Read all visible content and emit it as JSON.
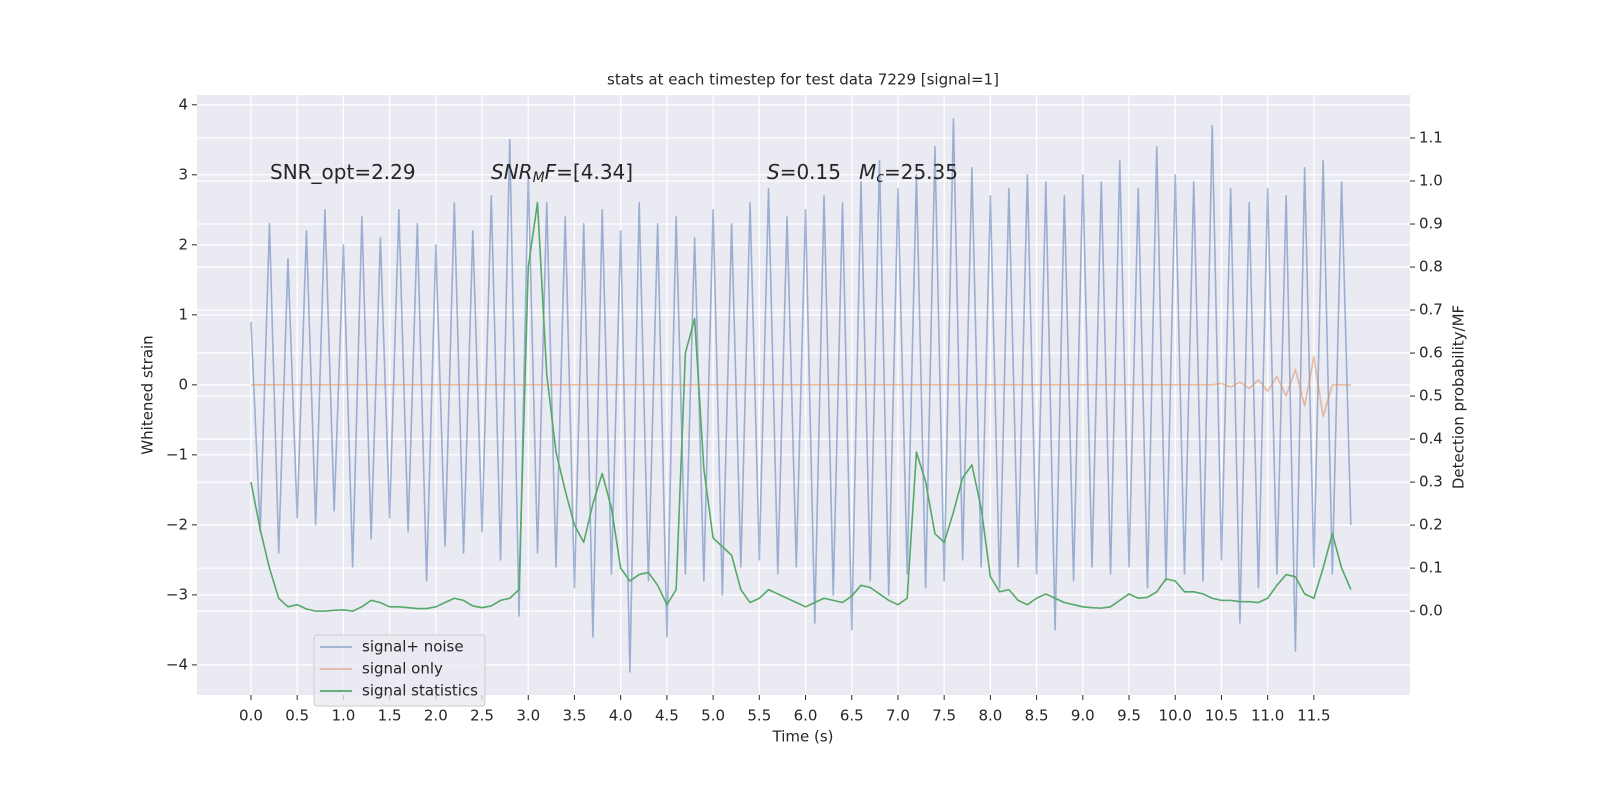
{
  "chart_data": {
    "type": "line",
    "title": "stats at each timestep for test data 7229 [signal=1]",
    "xlabel": "Time (s)",
    "ylabel": "Whitened strain",
    "y2label": "Detection probability/MF",
    "background": "#eaeaf2",
    "grid": true,
    "legend": "lower left",
    "xlim": [
      -0.584,
      12.54
    ],
    "ylim": [
      -4.43,
      4.14
    ],
    "y2lim": [
      -0.195,
      1.2
    ],
    "xticks": [
      {
        "value": 0,
        "label": "0.0"
      },
      0.5,
      {
        "value": 1,
        "label": "1.0"
      },
      1.5,
      {
        "value": 2,
        "label": "2.0"
      },
      2.5,
      {
        "value": 3,
        "label": "3.0"
      },
      3.5,
      {
        "value": 4,
        "label": "4.0"
      },
      4.5,
      {
        "value": 5,
        "label": "5.0"
      },
      5.5,
      {
        "value": 6,
        "label": "6.0"
      },
      6.5,
      {
        "value": 7,
        "label": "7.0"
      },
      7.5,
      {
        "value": 8,
        "label": "8.0"
      },
      8.5,
      {
        "value": 9,
        "label": "9.0"
      },
      9.5,
      {
        "value": 10,
        "label": "10.0"
      },
      10.5,
      {
        "value": 11,
        "label": "11.0"
      },
      11.5
    ],
    "yticks": [
      {
        "value": -4,
        "label": "−4"
      },
      {
        "value": -3,
        "label": "−3"
      },
      {
        "value": -2,
        "label": "−2"
      },
      {
        "value": -1,
        "label": "−1"
      },
      0,
      1,
      2,
      3,
      4
    ],
    "y2ticks": [
      {
        "value": 0,
        "label": "0.0"
      },
      0.1,
      0.2,
      0.3,
      0.4,
      0.5,
      0.6,
      0.7,
      0.8,
      0.9,
      {
        "value": 1,
        "label": "1.0"
      },
      1.1
    ],
    "x": [
      0,
      0.1,
      0.2,
      0.3,
      0.4,
      0.5,
      0.6,
      0.7,
      0.8,
      0.9,
      1,
      1.1,
      1.2,
      1.3,
      1.4,
      1.5,
      1.6,
      1.7,
      1.8,
      1.9,
      2,
      2.1,
      2.2,
      2.3,
      2.4,
      2.5,
      2.6,
      2.7,
      2.8,
      2.9,
      3,
      3.1,
      3.2,
      3.3,
      3.4,
      3.5,
      3.6,
      3.7,
      3.8,
      3.9,
      4,
      4.1,
      4.2,
      4.3,
      4.4,
      4.5,
      4.6,
      4.7,
      4.8,
      4.9,
      5,
      5.1,
      5.2,
      5.3,
      5.4,
      5.5,
      5.6,
      5.7,
      5.8,
      5.9,
      6,
      6.1,
      6.2,
      6.3,
      6.4,
      6.5,
      6.6,
      6.7,
      6.8,
      6.9,
      7,
      7.1,
      7.2,
      7.3,
      7.4,
      7.5,
      7.6,
      7.7,
      7.8,
      7.9,
      8,
      8.1,
      8.2,
      8.3,
      8.4,
      8.5,
      8.6,
      8.7,
      8.8,
      8.9,
      9,
      9.1,
      9.2,
      9.3,
      9.4,
      9.5,
      9.6,
      9.7,
      9.8,
      9.9,
      10,
      10.1,
      10.2,
      10.3,
      10.4,
      10.5,
      10.6,
      10.7,
      10.8,
      10.9,
      11,
      11.1,
      11.2,
      11.3,
      11.4,
      11.5,
      11.6,
      11.7,
      11.8,
      11.9
    ],
    "series": [
      {
        "name": "signal+ noise",
        "color": "#4c72b0",
        "opacity": 0.5,
        "values": [
          0.9,
          -2.1,
          2.3,
          -2.4,
          1.8,
          -1.9,
          2.2,
          -2.0,
          2.5,
          -1.8,
          2.0,
          -2.6,
          2.4,
          -2.2,
          2.1,
          -1.9,
          2.5,
          -2.1,
          2.3,
          -2.8,
          2.0,
          -2.3,
          2.6,
          -2.4,
          2.2,
          -2.1,
          2.7,
          -2.5,
          3.5,
          -3.3,
          3.0,
          -2.4,
          2.6,
          -2.6,
          2.4,
          -2.9,
          2.3,
          -3.6,
          2.5,
          -2.7,
          2.2,
          -4.1,
          2.6,
          -2.8,
          2.3,
          -3.6,
          2.4,
          -2.7,
          2.1,
          -2.8,
          2.5,
          -3.0,
          2.3,
          -2.6,
          2.6,
          -2.5,
          2.8,
          -2.7,
          2.4,
          -2.6,
          2.5,
          -3.4,
          2.7,
          -3.0,
          2.6,
          -3.5,
          2.9,
          -2.8,
          3.2,
          -3.0,
          2.8,
          -2.7,
          3.0,
          -2.9,
          3.4,
          -2.8,
          3.8,
          -2.5,
          3.1,
          -2.6,
          2.7,
          -2.9,
          2.8,
          -2.6,
          3.0,
          -2.7,
          2.9,
          -3.5,
          2.7,
          -2.8,
          3.0,
          -2.6,
          2.9,
          -2.7,
          3.2,
          -2.6,
          2.8,
          -2.9,
          3.4,
          -2.8,
          3.0,
          -2.7,
          2.9,
          -2.8,
          3.7,
          -2.5,
          2.8,
          -3.4,
          2.6,
          -2.9,
          2.8,
          -2.7,
          2.7,
          -3.8,
          3.1,
          -2.6,
          3.2,
          -2.7,
          2.9,
          -2.0
        ]
      },
      {
        "name": "signal only",
        "color": "#dd8452",
        "opacity": 0.5,
        "values": [
          0,
          0,
          0,
          0,
          0,
          0,
          0,
          0,
          0,
          0,
          0,
          0,
          0,
          0,
          0,
          0,
          0,
          0,
          0,
          0,
          0,
          0,
          0,
          0,
          0,
          0,
          0,
          0,
          0,
          0,
          0,
          0,
          0,
          0,
          0,
          0,
          0,
          0,
          0,
          0,
          0,
          0,
          0,
          0,
          0,
          0,
          0,
          0,
          0,
          0,
          0,
          0,
          0,
          0,
          0,
          0,
          0,
          0,
          0,
          0,
          0,
          0,
          0,
          0,
          0,
          0,
          0,
          0,
          0,
          0,
          0,
          0,
          0,
          0,
          0,
          0,
          0,
          0,
          0,
          0,
          0,
          0,
          0,
          0,
          0,
          0,
          0,
          0,
          0,
          0,
          0,
          0,
          0,
          0,
          0,
          0,
          0,
          0,
          0,
          0,
          0,
          0,
          0,
          0,
          0,
          0.02,
          -0.03,
          0.04,
          -0.05,
          0.07,
          -0.09,
          0.12,
          -0.16,
          0.22,
          -0.3,
          0.4,
          -0.45,
          0,
          0,
          0
        ]
      },
      {
        "name": "signal statistics",
        "color": "#55a868",
        "opacity": 1,
        "axis": "y2",
        "values": [
          0.3,
          0.19,
          0.1,
          0.03,
          0.01,
          0.015,
          0.005,
          0.0,
          0.0,
          0.002,
          0.003,
          0.0,
          0.01,
          0.025,
          0.02,
          0.01,
          0.01,
          0.008,
          0.006,
          0.006,
          0.01,
          0.02,
          0.03,
          0.025,
          0.012,
          0.008,
          0.012,
          0.025,
          0.03,
          0.05,
          0.8,
          0.95,
          0.55,
          0.37,
          0.28,
          0.2,
          0.16,
          0.25,
          0.32,
          0.24,
          0.1,
          0.07,
          0.085,
          0.09,
          0.06,
          0.015,
          0.05,
          0.6,
          0.68,
          0.33,
          0.17,
          0.15,
          0.13,
          0.05,
          0.02,
          0.03,
          0.05,
          0.04,
          0.03,
          0.02,
          0.01,
          0.02,
          0.03,
          0.025,
          0.02,
          0.035,
          0.06,
          0.055,
          0.04,
          0.025,
          0.015,
          0.03,
          0.37,
          0.3,
          0.18,
          0.16,
          0.23,
          0.31,
          0.34,
          0.24,
          0.08,
          0.045,
          0.05,
          0.025,
          0.015,
          0.03,
          0.04,
          0.03,
          0.02,
          0.015,
          0.01,
          0.008,
          0.007,
          0.01,
          0.025,
          0.04,
          0.03,
          0.032,
          0.045,
          0.075,
          0.07,
          0.045,
          0.045,
          0.04,
          0.03,
          0.025,
          0.025,
          0.022,
          0.022,
          0.02,
          0.03,
          0.06,
          0.085,
          0.08,
          0.04,
          0.03,
          0.1,
          0.18,
          0.1,
          0.05
        ]
      }
    ],
    "annotations": [
      {
        "segments": [
          {
            "text": "SNR_opt=2.29"
          }
        ]
      },
      {
        "segments": [
          {
            "text": "SNR",
            "italic": true
          },
          {
            "text": "M",
            "italic": true,
            "sub": true
          },
          {
            "text": "F",
            "italic": true
          },
          {
            "text": "=[4.34]"
          }
        ]
      },
      {
        "segments": [
          {
            "text": "S",
            "italic": true
          },
          {
            "text": "=0.15"
          }
        ]
      },
      {
        "segments": [
          {
            "text": "M",
            "italic": true
          },
          {
            "text": "c",
            "italic": true,
            "sub": true
          },
          {
            "text": "=25.35"
          }
        ]
      }
    ]
  }
}
